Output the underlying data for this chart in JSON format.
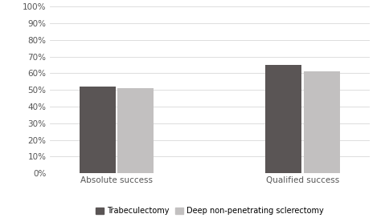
{
  "categories": [
    "Absolute success",
    "Qualified success"
  ],
  "trabeculectomy_values": [
    52,
    65
  ],
  "deep_values": [
    51,
    61
  ],
  "trabeculectomy_color": "#5a5555",
  "deep_color": "#c2c0c0",
  "ylim": [
    0,
    100
  ],
  "yticks": [
    0,
    10,
    20,
    30,
    40,
    50,
    60,
    70,
    80,
    90,
    100
  ],
  "ytick_labels": [
    "0%",
    "10%",
    "20%",
    "30%",
    "40%",
    "50%",
    "60%",
    "70%",
    "80%",
    "90%",
    "100%"
  ],
  "legend_trabeculectomy": "Trabeculectomy",
  "legend_deep": "Deep non-penetrating sclerectomy",
  "bar_width": 0.35,
  "background_color": "#ffffff",
  "grid_color": "#d8d8d8",
  "group_positions": [
    1.0,
    2.8
  ],
  "xlim": [
    0.35,
    3.45
  ]
}
